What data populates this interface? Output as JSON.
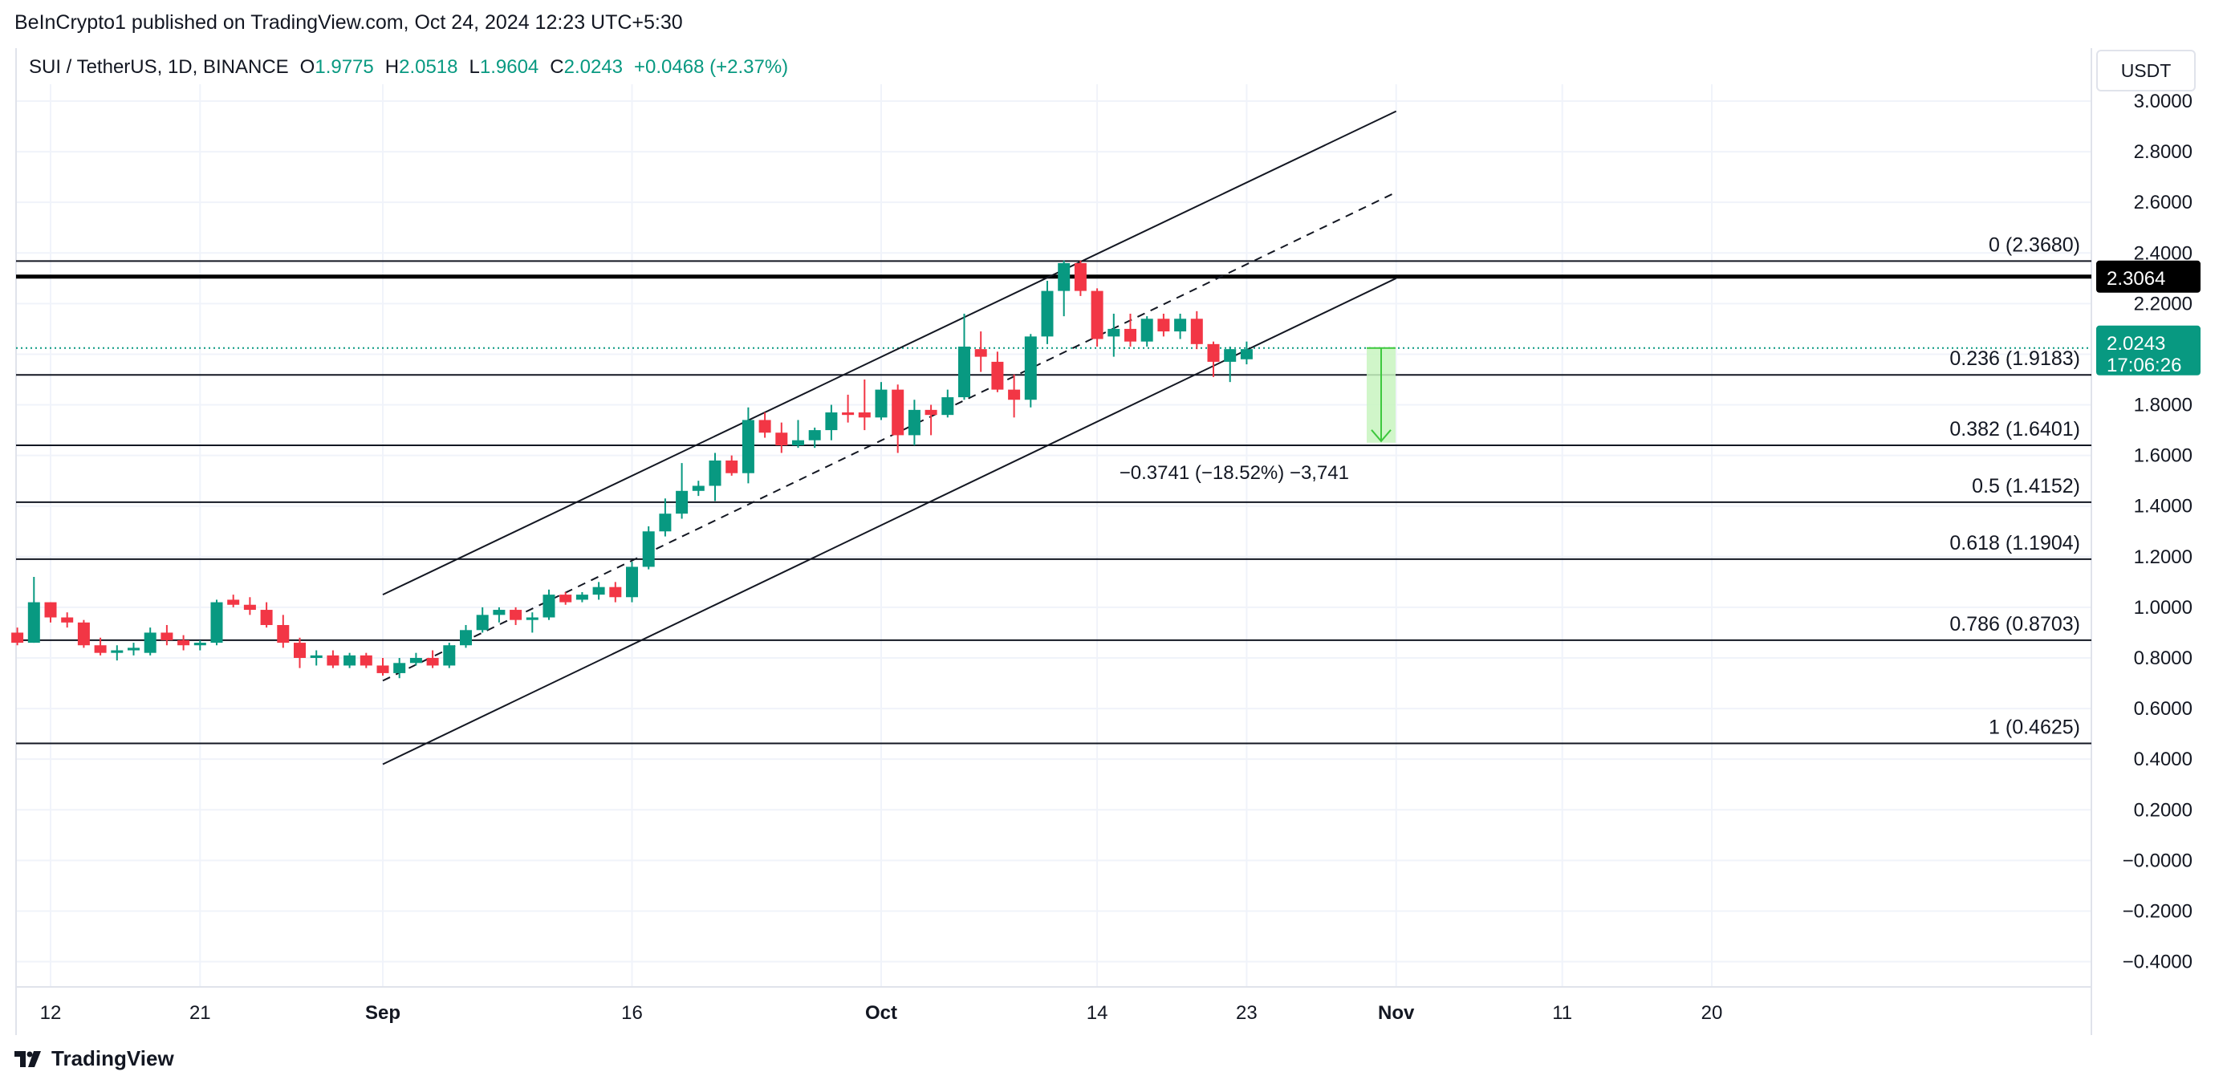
{
  "header": {
    "publisher": "BeInCrypto1 published on TradingView.com, Oct 24, 2024 12:23 UTC+5:30",
    "symbol": "SUI / TetherUS, 1D, BINANCE",
    "open_label": "O",
    "open": "1.9775",
    "high_label": "H",
    "high": "2.0518",
    "low_label": "L",
    "low": "1.9604",
    "close_label": "C",
    "close": "2.0243",
    "change": "+0.0468 (+2.37%)",
    "currency": "USDT"
  },
  "footer": {
    "brand": "TradingView"
  },
  "colors": {
    "up": "#089981",
    "down": "#f23645",
    "line": "#131722",
    "measure": "#3ec83e",
    "measure_fill": "#c8f5c0"
  },
  "chart_data": {
    "type": "candlestick",
    "title": "",
    "ylim": [
      -0.5,
      3.05
    ],
    "y_ticks": [
      "3.0000",
      "2.8000",
      "2.6000",
      "2.4000",
      "2.2000",
      "2.0000",
      "1.8000",
      "1.6000",
      "1.4000",
      "1.2000",
      "1.0000",
      "0.8000",
      "0.6000",
      "0.4000",
      "0.2000",
      "−0.0000",
      "−0.2000",
      "−0.4000"
    ],
    "y_tick_values": [
      3.0,
      2.8,
      2.6,
      2.4,
      2.2,
      2.0,
      1.8,
      1.6,
      1.4,
      1.2,
      1.0,
      0.8,
      0.6,
      0.4,
      0.2,
      0.0,
      -0.2,
      -0.4
    ],
    "x_ticks": [
      {
        "label": "12",
        "day": 0,
        "bold": false
      },
      {
        "label": "21",
        "day": 9,
        "bold": false
      },
      {
        "label": "Sep",
        "day": 20,
        "bold": true
      },
      {
        "label": "16",
        "day": 35,
        "bold": false
      },
      {
        "label": "Oct",
        "day": 50,
        "bold": true
      },
      {
        "label": "14",
        "day": 63,
        "bold": false
      },
      {
        "label": "23",
        "day": 72,
        "bold": false
      },
      {
        "label": "Nov",
        "day": 81,
        "bold": true
      },
      {
        "label": "11",
        "day": 91,
        "bold": false
      },
      {
        "label": "20",
        "day": 100,
        "bold": false
      }
    ],
    "candles": [
      {
        "d": -2,
        "o": 0.9,
        "h": 0.92,
        "l": 0.85,
        "c": 0.86
      },
      {
        "d": -1,
        "o": 0.86,
        "h": 1.12,
        "l": 0.86,
        "c": 1.02
      },
      {
        "d": 0,
        "o": 1.02,
        "h": 1.02,
        "l": 0.94,
        "c": 0.96
      },
      {
        "d": 1,
        "o": 0.96,
        "h": 0.98,
        "l": 0.92,
        "c": 0.94
      },
      {
        "d": 2,
        "o": 0.94,
        "h": 0.95,
        "l": 0.84,
        "c": 0.85
      },
      {
        "d": 3,
        "o": 0.85,
        "h": 0.88,
        "l": 0.81,
        "c": 0.82
      },
      {
        "d": 4,
        "o": 0.82,
        "h": 0.85,
        "l": 0.79,
        "c": 0.83
      },
      {
        "d": 5,
        "o": 0.83,
        "h": 0.86,
        "l": 0.81,
        "c": 0.84
      },
      {
        "d": 6,
        "o": 0.82,
        "h": 0.92,
        "l": 0.81,
        "c": 0.9
      },
      {
        "d": 7,
        "o": 0.9,
        "h": 0.93,
        "l": 0.85,
        "c": 0.87
      },
      {
        "d": 8,
        "o": 0.87,
        "h": 0.89,
        "l": 0.83,
        "c": 0.85
      },
      {
        "d": 9,
        "o": 0.85,
        "h": 0.87,
        "l": 0.83,
        "c": 0.86
      },
      {
        "d": 10,
        "o": 0.86,
        "h": 1.03,
        "l": 0.85,
        "c": 1.02
      },
      {
        "d": 11,
        "o": 1.03,
        "h": 1.05,
        "l": 1.0,
        "c": 1.01
      },
      {
        "d": 12,
        "o": 1.01,
        "h": 1.04,
        "l": 0.97,
        "c": 0.99
      },
      {
        "d": 13,
        "o": 0.99,
        "h": 1.02,
        "l": 0.92,
        "c": 0.93
      },
      {
        "d": 14,
        "o": 0.93,
        "h": 0.97,
        "l": 0.84,
        "c": 0.86
      },
      {
        "d": 15,
        "o": 0.86,
        "h": 0.88,
        "l": 0.76,
        "c": 0.8
      },
      {
        "d": 16,
        "o": 0.8,
        "h": 0.83,
        "l": 0.77,
        "c": 0.81
      },
      {
        "d": 17,
        "o": 0.81,
        "h": 0.83,
        "l": 0.76,
        "c": 0.77
      },
      {
        "d": 18,
        "o": 0.77,
        "h": 0.82,
        "l": 0.76,
        "c": 0.81
      },
      {
        "d": 19,
        "o": 0.81,
        "h": 0.82,
        "l": 0.76,
        "c": 0.77
      },
      {
        "d": 20,
        "o": 0.77,
        "h": 0.8,
        "l": 0.73,
        "c": 0.74
      },
      {
        "d": 21,
        "o": 0.74,
        "h": 0.8,
        "l": 0.72,
        "c": 0.78
      },
      {
        "d": 22,
        "o": 0.78,
        "h": 0.82,
        "l": 0.77,
        "c": 0.8
      },
      {
        "d": 23,
        "o": 0.8,
        "h": 0.83,
        "l": 0.76,
        "c": 0.77
      },
      {
        "d": 24,
        "o": 0.77,
        "h": 0.86,
        "l": 0.76,
        "c": 0.85
      },
      {
        "d": 25,
        "o": 0.85,
        "h": 0.93,
        "l": 0.84,
        "c": 0.91
      },
      {
        "d": 26,
        "o": 0.91,
        "h": 1.0,
        "l": 0.9,
        "c": 0.97
      },
      {
        "d": 27,
        "o": 0.97,
        "h": 1.0,
        "l": 0.94,
        "c": 0.99
      },
      {
        "d": 28,
        "o": 0.99,
        "h": 1.0,
        "l": 0.93,
        "c": 0.95
      },
      {
        "d": 29,
        "o": 0.95,
        "h": 0.98,
        "l": 0.9,
        "c": 0.96
      },
      {
        "d": 30,
        "o": 0.96,
        "h": 1.07,
        "l": 0.95,
        "c": 1.05
      },
      {
        "d": 31,
        "o": 1.05,
        "h": 1.06,
        "l": 1.01,
        "c": 1.02
      },
      {
        "d": 32,
        "o": 1.03,
        "h": 1.06,
        "l": 1.02,
        "c": 1.05
      },
      {
        "d": 33,
        "o": 1.05,
        "h": 1.1,
        "l": 1.03,
        "c": 1.08
      },
      {
        "d": 34,
        "o": 1.08,
        "h": 1.1,
        "l": 1.02,
        "c": 1.04
      },
      {
        "d": 35,
        "o": 1.04,
        "h": 1.18,
        "l": 1.02,
        "c": 1.16
      },
      {
        "d": 36,
        "o": 1.16,
        "h": 1.32,
        "l": 1.15,
        "c": 1.3
      },
      {
        "d": 37,
        "o": 1.3,
        "h": 1.43,
        "l": 1.28,
        "c": 1.37
      },
      {
        "d": 38,
        "o": 1.37,
        "h": 1.57,
        "l": 1.35,
        "c": 1.46
      },
      {
        "d": 39,
        "o": 1.46,
        "h": 1.5,
        "l": 1.44,
        "c": 1.48
      },
      {
        "d": 40,
        "o": 1.48,
        "h": 1.61,
        "l": 1.42,
        "c": 1.58
      },
      {
        "d": 41,
        "o": 1.58,
        "h": 1.6,
        "l": 1.52,
        "c": 1.53
      },
      {
        "d": 42,
        "o": 1.53,
        "h": 1.79,
        "l": 1.49,
        "c": 1.74
      },
      {
        "d": 43,
        "o": 1.74,
        "h": 1.77,
        "l": 1.67,
        "c": 1.69
      },
      {
        "d": 44,
        "o": 1.69,
        "h": 1.73,
        "l": 1.61,
        "c": 1.64
      },
      {
        "d": 45,
        "o": 1.64,
        "h": 1.74,
        "l": 1.63,
        "c": 1.66
      },
      {
        "d": 46,
        "o": 1.66,
        "h": 1.71,
        "l": 1.63,
        "c": 1.7
      },
      {
        "d": 47,
        "o": 1.7,
        "h": 1.8,
        "l": 1.66,
        "c": 1.77
      },
      {
        "d": 48,
        "o": 1.77,
        "h": 1.84,
        "l": 1.73,
        "c": 1.76
      },
      {
        "d": 49,
        "o": 1.77,
        "h": 1.9,
        "l": 1.7,
        "c": 1.75
      },
      {
        "d": 50,
        "o": 1.75,
        "h": 1.89,
        "l": 1.74,
        "c": 1.86
      },
      {
        "d": 51,
        "o": 1.86,
        "h": 1.88,
        "l": 1.61,
        "c": 1.68
      },
      {
        "d": 52,
        "o": 1.68,
        "h": 1.82,
        "l": 1.64,
        "c": 1.78
      },
      {
        "d": 53,
        "o": 1.78,
        "h": 1.8,
        "l": 1.68,
        "c": 1.76
      },
      {
        "d": 54,
        "o": 1.76,
        "h": 1.86,
        "l": 1.75,
        "c": 1.83
      },
      {
        "d": 55,
        "o": 1.83,
        "h": 2.16,
        "l": 1.82,
        "c": 2.03
      },
      {
        "d": 56,
        "o": 2.02,
        "h": 2.09,
        "l": 1.93,
        "c": 1.99
      },
      {
        "d": 57,
        "o": 1.97,
        "h": 2.01,
        "l": 1.85,
        "c": 1.86
      },
      {
        "d": 58,
        "o": 1.86,
        "h": 1.92,
        "l": 1.75,
        "c": 1.82
      },
      {
        "d": 59,
        "o": 1.82,
        "h": 2.08,
        "l": 1.79,
        "c": 2.07
      },
      {
        "d": 60,
        "o": 2.07,
        "h": 2.29,
        "l": 2.04,
        "c": 2.25
      },
      {
        "d": 61,
        "o": 2.25,
        "h": 2.37,
        "l": 2.15,
        "c": 2.36
      },
      {
        "d": 62,
        "o": 2.36,
        "h": 2.37,
        "l": 2.23,
        "c": 2.25
      },
      {
        "d": 63,
        "o": 2.25,
        "h": 2.26,
        "l": 2.03,
        "c": 2.06
      },
      {
        "d": 64,
        "o": 2.07,
        "h": 2.16,
        "l": 1.99,
        "c": 2.1
      },
      {
        "d": 65,
        "o": 2.1,
        "h": 2.16,
        "l": 2.03,
        "c": 2.05
      },
      {
        "d": 66,
        "o": 2.05,
        "h": 2.15,
        "l": 2.03,
        "c": 2.14
      },
      {
        "d": 67,
        "o": 2.14,
        "h": 2.16,
        "l": 2.07,
        "c": 2.09
      },
      {
        "d": 68,
        "o": 2.09,
        "h": 2.16,
        "l": 2.06,
        "c": 2.14
      },
      {
        "d": 69,
        "o": 2.14,
        "h": 2.17,
        "l": 2.02,
        "c": 2.04
      },
      {
        "d": 70,
        "o": 2.04,
        "h": 2.05,
        "l": 1.91,
        "c": 1.97
      },
      {
        "d": 71,
        "o": 1.97,
        "h": 2.03,
        "l": 1.89,
        "c": 2.02
      },
      {
        "d": 72,
        "o": 1.98,
        "h": 2.05,
        "l": 1.96,
        "c": 2.02
      }
    ],
    "fibonacci": [
      {
        "label": "0 (2.3680)",
        "value": 2.368
      },
      {
        "label": "0.236 (1.9183)",
        "value": 1.9183
      },
      {
        "label": "0.382 (1.6401)",
        "value": 1.6401
      },
      {
        "label": "0.5 (1.4152)",
        "value": 1.4152
      },
      {
        "label": "0.618 (1.1904)",
        "value": 1.1904
      },
      {
        "label": "0.786 (0.8703)",
        "value": 0.8703
      },
      {
        "label": "1 (0.4625)",
        "value": 0.4625
      }
    ],
    "horizontal_level": 2.3064,
    "price_badges": [
      {
        "value": "2.3064",
        "y": 2.3064,
        "color": "#000000"
      },
      {
        "value": "2.0243",
        "countdown": "17:06:26",
        "y": 2.0243,
        "color": "#089981"
      }
    ],
    "channel": {
      "upper": [
        [
          20,
          1.05
        ],
        [
          81,
          2.96
        ]
      ],
      "middle": [
        [
          20,
          0.71
        ],
        [
          81,
          2.64
        ]
      ],
      "lower": [
        [
          20,
          0.38
        ],
        [
          81,
          2.3
        ]
      ]
    },
    "measure": {
      "from": 2.0243,
      "to": 1.6502,
      "day": 80,
      "label": "−0.3741 (−18.52%) −3,741"
    }
  }
}
